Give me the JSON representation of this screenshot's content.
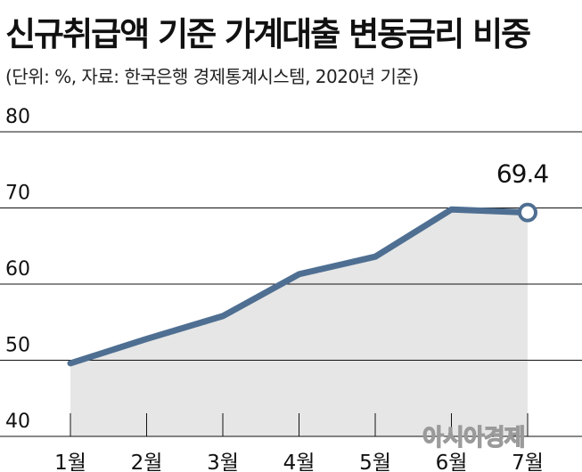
{
  "title": "신규취급액 기준 가계대출 변동금리 비중",
  "subtitle": "(단위: %, 자료: 한국은행 경제통계시스템, 2020년 기준)",
  "watermark": "아시아경제",
  "colors": {
    "line": "#4f6f92",
    "area": "#e6e6e6",
    "grid": "#111111",
    "marker_fill": "#ffffff"
  },
  "chart_data": {
    "type": "area",
    "categories": [
      "1월",
      "2월",
      "3월",
      "4월",
      "5월",
      "6월",
      "7월"
    ],
    "values": [
      49.6,
      52.8,
      55.8,
      61.3,
      63.6,
      69.8,
      69.4
    ],
    "ylim": [
      40,
      80
    ],
    "yticks": [
      40,
      50,
      60,
      70,
      80
    ],
    "grid": true,
    "data_labels": [
      {
        "index": 6,
        "text": "69.4"
      }
    ],
    "last_point_marker": "hollow-circle"
  }
}
